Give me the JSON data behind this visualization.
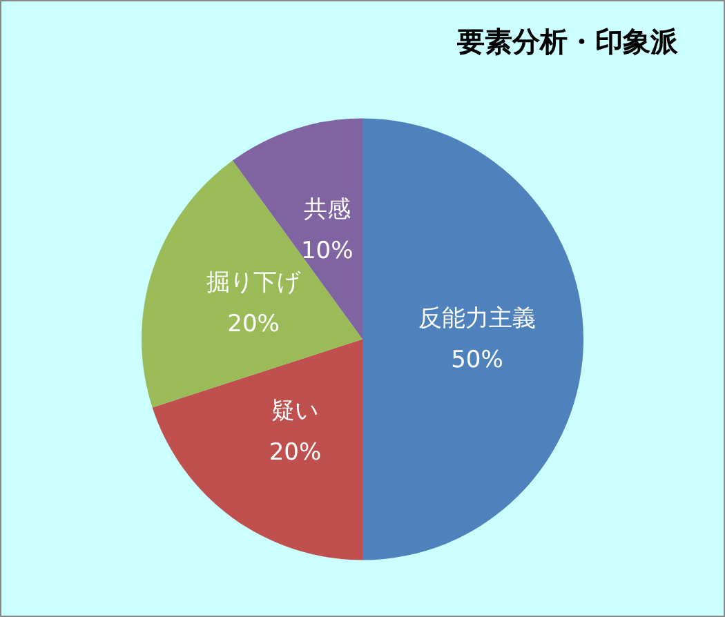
{
  "chart_data": {
    "type": "pie",
    "title": "要素分析・印象派",
    "categories": [
      "反能力主義",
      "疑い",
      "掘り下げ",
      "共感"
    ],
    "values": [
      50,
      20,
      20,
      10
    ],
    "colors": [
      "#4f81bd",
      "#c0504d",
      "#9bbb59",
      "#8064a2"
    ],
    "value_labels": [
      "50%",
      "20%",
      "20%",
      "10%"
    ],
    "legend": false
  }
}
